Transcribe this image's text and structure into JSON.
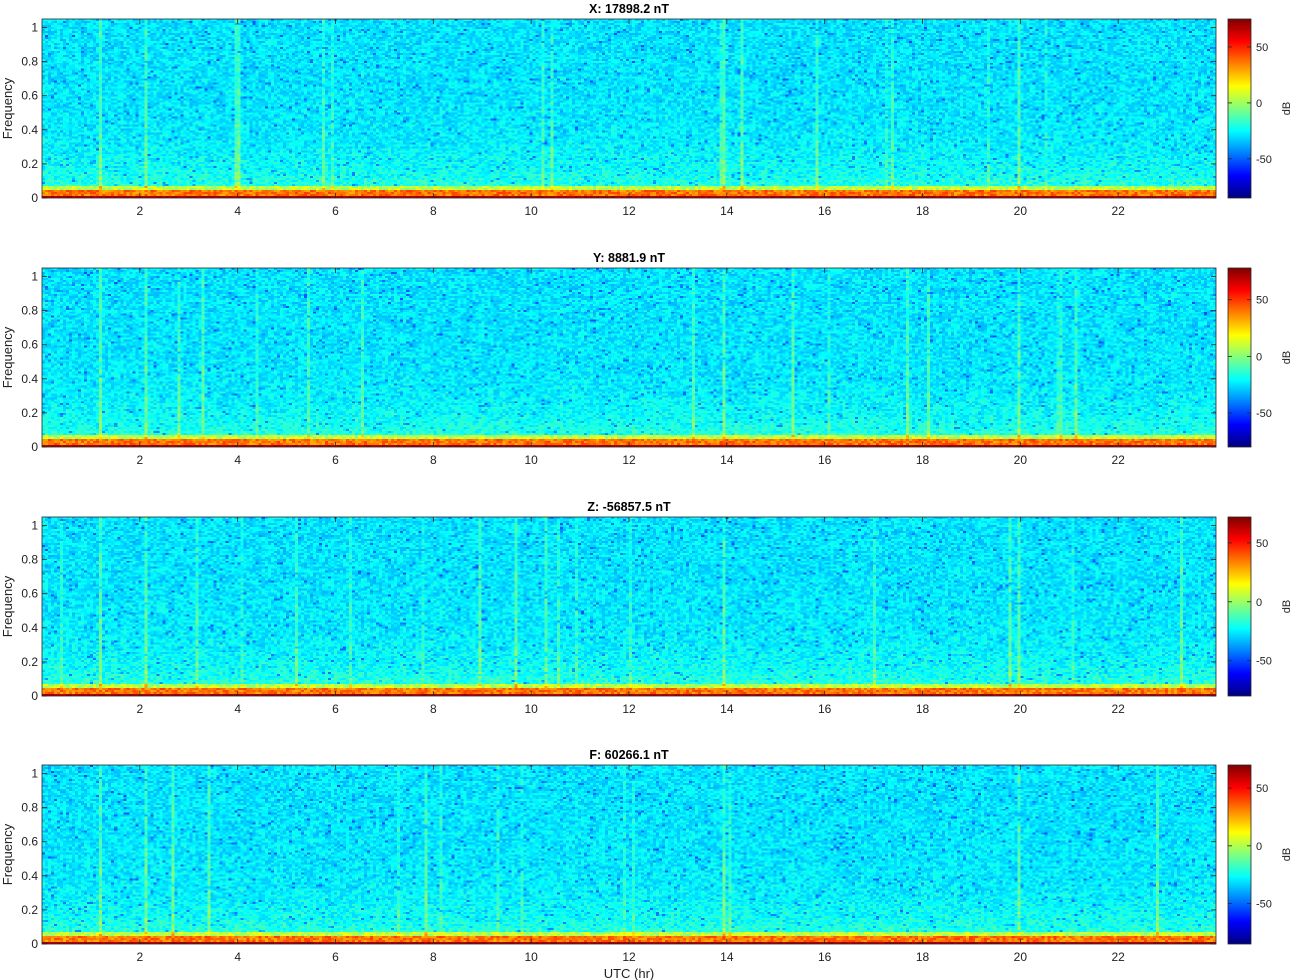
{
  "chart_data": [
    {
      "type": "heatmap",
      "title": "X: 17898.2 nT",
      "ylabel": "Frequency",
      "xlabel": "",
      "xlim": [
        0,
        24
      ],
      "ylim": [
        0,
        1.05
      ],
      "x_ticks": [
        2,
        4,
        6,
        8,
        10,
        12,
        14,
        16,
        18,
        20,
        22
      ],
      "y_ticks": [
        0,
        0.2,
        0.4,
        0.6,
        0.8,
        1
      ],
      "colorbar": {
        "label": "dB",
        "range": [
          -85,
          75
        ],
        "ticks": [
          -50,
          0,
          50
        ]
      },
      "colormap": "jet"
    },
    {
      "type": "heatmap",
      "title": "Y: 8881.9 nT",
      "ylabel": "Frequency",
      "xlabel": "",
      "xlim": [
        0,
        24
      ],
      "ylim": [
        0,
        1.05
      ],
      "x_ticks": [
        2,
        4,
        6,
        8,
        10,
        12,
        14,
        16,
        18,
        20,
        22
      ],
      "y_ticks": [
        0,
        0.2,
        0.4,
        0.6,
        0.8,
        1
      ],
      "colorbar": {
        "label": "dB",
        "range": [
          -80,
          78
        ],
        "ticks": [
          -50,
          0,
          50
        ]
      },
      "colormap": "jet"
    },
    {
      "type": "heatmap",
      "title": "Z: -56857.5 nT",
      "ylabel": "Frequency",
      "xlabel": "",
      "xlim": [
        0,
        24
      ],
      "ylim": [
        0,
        1.05
      ],
      "x_ticks": [
        2,
        4,
        6,
        8,
        10,
        12,
        14,
        16,
        18,
        20,
        22
      ],
      "y_ticks": [
        0,
        0.2,
        0.4,
        0.6,
        0.8,
        1
      ],
      "colorbar": {
        "label": "dB",
        "range": [
          -80,
          72
        ],
        "ticks": [
          -50,
          0,
          50
        ]
      },
      "colormap": "jet"
    },
    {
      "type": "heatmap",
      "title": "F: 60266.1 nT",
      "ylabel": "Frequency",
      "xlabel": "UTC (hr)",
      "xlim": [
        0,
        24
      ],
      "ylim": [
        0,
        1.05
      ],
      "x_ticks": [
        2,
        4,
        6,
        8,
        10,
        12,
        14,
        16,
        18,
        20,
        22
      ],
      "y_ticks": [
        0,
        0.2,
        0.4,
        0.6,
        0.8,
        1
      ],
      "colorbar": {
        "label": "dB",
        "range": [
          -85,
          70
        ],
        "ticks": [
          -50,
          0,
          50
        ]
      },
      "colormap": "jet"
    }
  ]
}
